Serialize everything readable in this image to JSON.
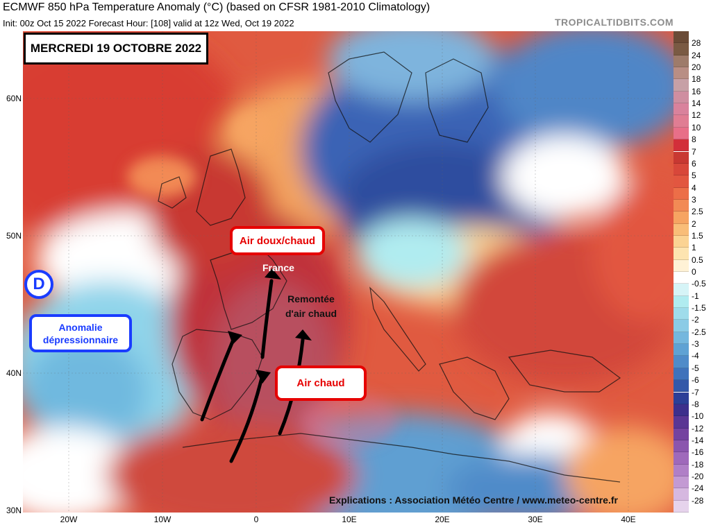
{
  "header": {
    "title": "ECMWF 850 hPa Temperature Anomaly (°C) (based on CFSR 1981-2010 Climatology)",
    "subtitle": "Init: 00z Oct 15 2022   Forecast Hour: [108]   valid at 12z Wed, Oct 19 2022",
    "brand": "TROPICALTIDBITS.COM"
  },
  "axes": {
    "lat_labels": [
      "60N",
      "50N",
      "40N",
      "30N"
    ],
    "lon_labels": [
      "20W",
      "10W",
      "0",
      "10E",
      "20E",
      "30E",
      "40E"
    ]
  },
  "colorbar": {
    "labels": [
      "28",
      "24",
      "20",
      "18",
      "16",
      "14",
      "12",
      "10",
      "8",
      "7",
      "6",
      "5",
      "4",
      "3",
      "2.5",
      "2",
      "1.5",
      "1",
      "0.5",
      "0",
      "-0.5",
      "-1",
      "-1.5",
      "-2",
      "-2.5",
      "-3",
      "-4",
      "-5",
      "-6",
      "-7",
      "-8",
      "-10",
      "-12",
      "-14",
      "-16",
      "-18",
      "-20",
      "-24",
      "-28"
    ],
    "colors": [
      "#7a5a43",
      "#9e7b6a",
      "#b98e84",
      "#c7a0a6",
      "#cf8ea0",
      "#d9829c",
      "#e07d93",
      "#e86f88",
      "#d22f3a",
      "#c83832",
      "#d8473a",
      "#e25640",
      "#ec6e48",
      "#f28a55",
      "#f6a462",
      "#f9bd78",
      "#fbd393",
      "#fde4b0",
      "#fff2d6",
      "#ffffff",
      "#d6f4f7",
      "#b0ecf0",
      "#9fdceb",
      "#8bcbe6",
      "#74b7de",
      "#5fa2d4",
      "#4f8bc9",
      "#3f72bb",
      "#3358a9",
      "#2c3f97",
      "#3d2f8c",
      "#5a3694",
      "#7443a0",
      "#8b55ae",
      "#9f69bb",
      "#b07fc7",
      "#c39ad3",
      "#d6b8e0",
      "#e6d3ec"
    ]
  },
  "annotations": {
    "date_banner": "MERCREDI 19 OCTOBRE 2022",
    "air_doux_chaud": "Air doux/chaud",
    "air_chaud": "Air chaud",
    "france": "France",
    "remontee_line1": "Remontée",
    "remontee_line2": "d'air chaud",
    "depression_symbol": "D",
    "anomalie_line1": "Anomalie",
    "anomalie_line2": "dépressionnaire",
    "credit": "Explications : Association Météo Centre / www.meteo-centre.fr"
  }
}
